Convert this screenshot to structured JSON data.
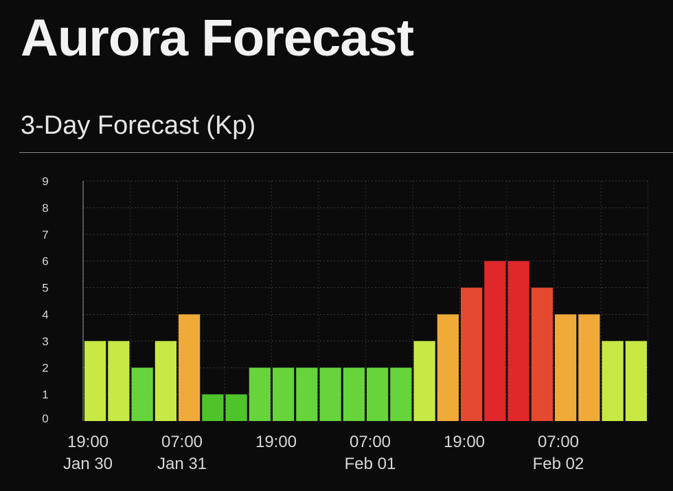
{
  "header": {
    "title": "Aurora Forecast",
    "section_title": "3-Day Forecast (Kp)"
  },
  "colors": {
    "background": "#0b0b0b",
    "kp_1": "#4fc42a",
    "kp_2": "#66d43a",
    "kp_3": "#c8e844",
    "kp_4": "#f0aa38",
    "kp_5": "#e5492f",
    "kp_6": "#e0272a"
  },
  "chart_data": {
    "type": "bar",
    "title": "3-Day Forecast (Kp)",
    "xlabel": "",
    "ylabel": "",
    "ylim": [
      0,
      9
    ],
    "yticks": [
      0,
      1,
      2,
      3,
      4,
      5,
      6,
      7,
      8,
      9
    ],
    "grid": true,
    "values": [
      3,
      3,
      2,
      3,
      4,
      1,
      1,
      2,
      2,
      2,
      2,
      2,
      2,
      2,
      3,
      4,
      5,
      6,
      6,
      5,
      4,
      4,
      3,
      3
    ],
    "x_tick_labels": [
      {
        "bar_index": 0,
        "time": "19:00",
        "date": "Jan 30"
      },
      {
        "bar_index": 4,
        "time": "07:00",
        "date": "Jan 31"
      },
      {
        "bar_index": 8,
        "time": "19:00",
        "date": ""
      },
      {
        "bar_index": 12,
        "time": "07:00",
        "date": "Feb 01"
      },
      {
        "bar_index": 16,
        "time": "19:00",
        "date": ""
      },
      {
        "bar_index": 20,
        "time": "07:00",
        "date": "Feb 02"
      }
    ]
  }
}
